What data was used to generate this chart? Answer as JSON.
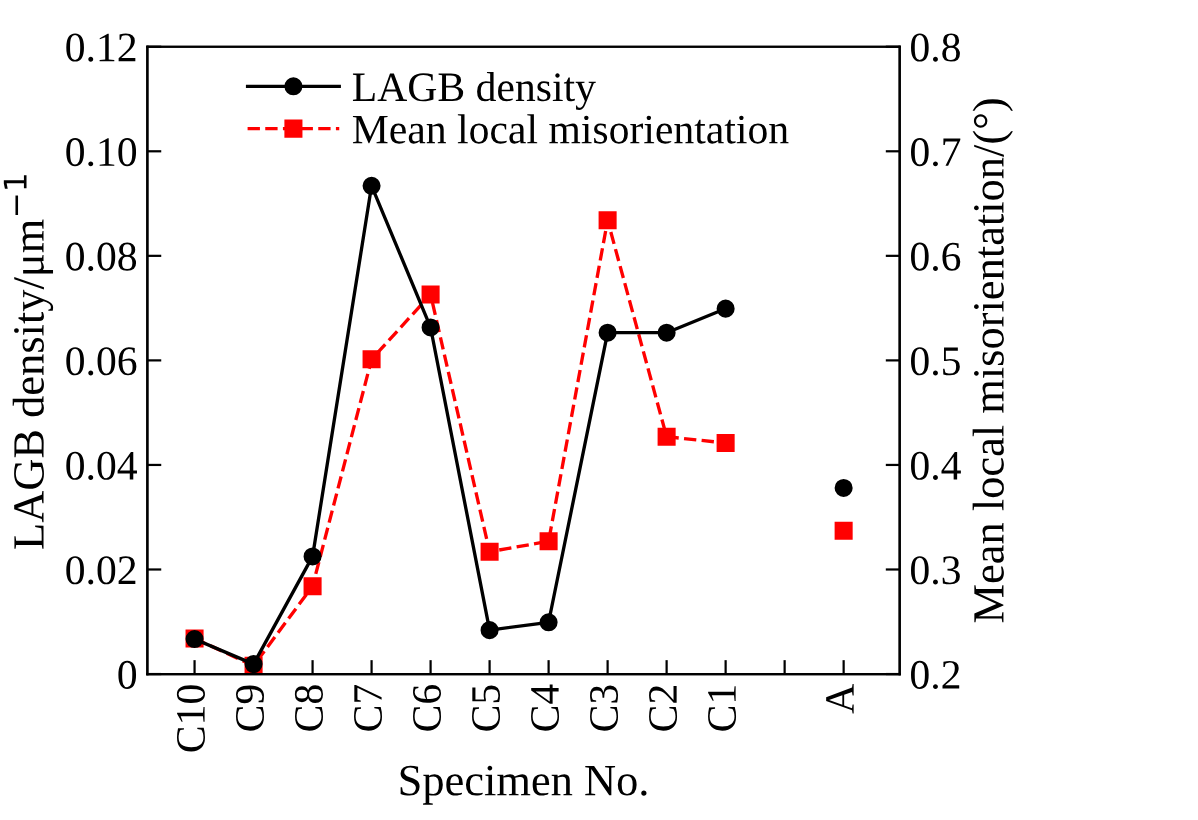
{
  "chart_data": {
    "type": "line",
    "xlabel": "Specimen No.",
    "ylabel": "LAGB density/μm$^{−1}$",
    "y2label": "Mean local misorientation/(°)",
    "categories": [
      "C10",
      "C9",
      "C8",
      "C7",
      "C6",
      "C5",
      "C4",
      "C3",
      "C2",
      "C1",
      null,
      "A"
    ],
    "series": [
      {
        "name": "LAGB density",
        "color": "#000000",
        "marker": "circle",
        "line_style": "solid",
        "values": [
          0.0067,
          0.0019,
          0.0225,
          0.0934,
          0.0663,
          0.0084,
          0.0099,
          0.0653,
          0.0653,
          0.0699,
          null,
          0.0356
        ]
      },
      {
        "name": "Mean local misorientation",
        "color": "#ff0000",
        "marker": "square",
        "line_style": "dashed",
        "axis": "y2",
        "values": [
          0.234,
          0.208,
          0.284,
          0.501,
          0.563,
          0.317,
          0.327,
          0.634,
          0.427,
          0.421,
          null,
          0.337
        ]
      }
    ],
    "ylim": [
      0,
      0.12
    ],
    "yticks": [
      0,
      0.02,
      0.04,
      0.06,
      0.08,
      {
        "value": 0.1,
        "label": "0.10"
      },
      0.12
    ],
    "y2lim": [
      0.2,
      0.8
    ],
    "y2ticks": [
      0.2,
      0.3,
      0.4,
      0.5,
      0.6,
      0.7,
      0.8
    ],
    "legend": "top left",
    "grid": false
  }
}
